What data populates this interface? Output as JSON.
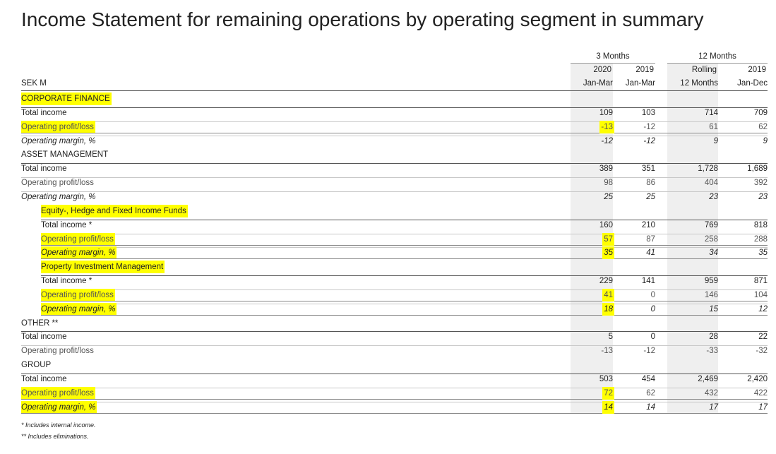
{
  "title": "Income Statement for remaining operations by operating segment in summary",
  "header": {
    "groups": [
      "3 Months",
      "12 Months"
    ],
    "unit": "SEK M",
    "years": [
      "2020",
      "2019",
      "Rolling",
      "2019"
    ],
    "periods": [
      "Jan-Mar",
      "Jan-Mar",
      "12 Months",
      "Jan-Dec"
    ]
  },
  "rows": [
    {
      "label": "CORPORATE FINANCE"
    },
    {
      "label": "Total income",
      "values": [
        "109",
        "103",
        "714",
        "709"
      ]
    },
    {
      "label": "Operating profit/loss",
      "values": [
        "-13",
        "-12",
        "61",
        "62"
      ]
    },
    {
      "label": "Operating margin, %",
      "values": [
        "-12",
        "-12",
        "9",
        "9"
      ]
    },
    {
      "label": "ASSET MANAGEMENT"
    },
    {
      "label": "Total income",
      "values": [
        "389",
        "351",
        "1,728",
        "1,689"
      ]
    },
    {
      "label": "Operating profit/loss",
      "values": [
        "98",
        "86",
        "404",
        "392"
      ]
    },
    {
      "label": "Operating margin, %",
      "values": [
        "25",
        "25",
        "23",
        "23"
      ]
    },
    {
      "label": "Equity-, Hedge and Fixed Income Funds"
    },
    {
      "label": "Total income *",
      "values": [
        "160",
        "210",
        "769",
        "818"
      ]
    },
    {
      "label": "Operating profit/loss",
      "values": [
        "57",
        "87",
        "258",
        "288"
      ]
    },
    {
      "label": "Operating margin, %",
      "values": [
        "35",
        "41",
        "34",
        "35"
      ]
    },
    {
      "label": "Property Investment Management"
    },
    {
      "label": "Total income *",
      "values": [
        "229",
        "141",
        "959",
        "871"
      ]
    },
    {
      "label": "Operating profit/loss",
      "values": [
        "41",
        "0",
        "146",
        "104"
      ]
    },
    {
      "label": "Operating margin, %",
      "values": [
        "18",
        "0",
        "15",
        "12"
      ]
    },
    {
      "label": "OTHER **"
    },
    {
      "label": "Total income",
      "values": [
        "5",
        "0",
        "28",
        "22"
      ]
    },
    {
      "label": "Operating profit/loss",
      "values": [
        "-13",
        "-12",
        "-33",
        "-32"
      ]
    },
    {
      "label": "GROUP"
    },
    {
      "label": "Total income",
      "values": [
        "503",
        "454",
        "2,469",
        "2,420"
      ]
    },
    {
      "label": "Operating profit/loss",
      "values": [
        "72",
        "62",
        "432",
        "422"
      ]
    },
    {
      "label": "Operating margin, %",
      "values": [
        "14",
        "14",
        "17",
        "17"
      ]
    }
  ],
  "footnotes": [
    "* Includes internal income.",
    "** Includes eliminations."
  ]
}
